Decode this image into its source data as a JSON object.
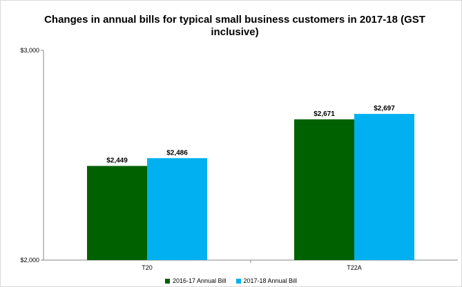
{
  "chart_data": {
    "type": "bar",
    "title": "Changes in annual bills for typical small business customers in 2017-18 (GST inclusive)",
    "categories": [
      "T20",
      "T22A"
    ],
    "series": [
      {
        "name": "2016-17 Annual Bill",
        "values": [
          2449,
          2671
        ],
        "labels": [
          "$2,449",
          "$2,671"
        ],
        "color": "#006100"
      },
      {
        "name": "2017-18 Annual Bill",
        "values": [
          2486,
          2697
        ],
        "labels": [
          "$2,486",
          "$2,697"
        ],
        "color": "#00b0f0"
      }
    ],
    "ylim": [
      2000,
      3000
    ],
    "yticks": [
      {
        "value": 2000,
        "label": "$2,000"
      },
      {
        "value": 3000,
        "label": "$3,000"
      }
    ],
    "xlabel": "",
    "ylabel": "",
    "grid": false,
    "legend_position": "bottom"
  }
}
